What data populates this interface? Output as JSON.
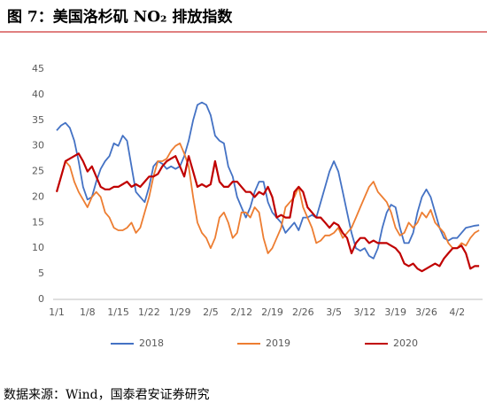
{
  "chart_data": {
    "type": "line",
    "title": "图 7：美国洛杉矶 NO₂ 排放指数",
    "source": "数据来源：Wind，国泰君安证券研究",
    "categories": [
      "1/1",
      null,
      null,
      null,
      null,
      null,
      null,
      "1/8",
      null,
      null,
      null,
      null,
      null,
      null,
      "1/15",
      null,
      null,
      null,
      null,
      null,
      null,
      "1/22",
      null,
      null,
      null,
      null,
      null,
      null,
      "1/29",
      null,
      null,
      null,
      null,
      null,
      null,
      "2/5",
      null,
      null,
      null,
      null,
      null,
      null,
      "2/12",
      null,
      null,
      null,
      null,
      null,
      null,
      "2/19",
      null,
      null,
      null,
      null,
      null,
      null,
      "2/26",
      null,
      null,
      null,
      null,
      null,
      null,
      "3/5",
      null,
      null,
      null,
      null,
      null,
      null,
      "3/12",
      null,
      null,
      null,
      null,
      null,
      null,
      "3/19",
      null,
      null,
      null,
      null,
      null,
      null,
      "3/26",
      null,
      null,
      null,
      null,
      null,
      null,
      "4/2",
      null,
      null,
      null,
      null,
      null
    ],
    "series": [
      {
        "name": "2018",
        "color": "#4472c4",
        "values": [
          33,
          34,
          34.5,
          33.5,
          31,
          27,
          22,
          19.5,
          20,
          23,
          25.5,
          27,
          28,
          30.5,
          30,
          32,
          31,
          26,
          21,
          20,
          19,
          22,
          26,
          27,
          26.5,
          25.5,
          26,
          25.5,
          26,
          28,
          31,
          35,
          38,
          38.5,
          38,
          36,
          32,
          31,
          30.5,
          26,
          24,
          20,
          18,
          16,
          18,
          21,
          23,
          23,
          19,
          17,
          16,
          15,
          13,
          14,
          15,
          13.5,
          16,
          16,
          16.5,
          16,
          19,
          22,
          25,
          27,
          25,
          21,
          17,
          13,
          10,
          9.5,
          10,
          8.5,
          8,
          10,
          14,
          17,
          18.5,
          18,
          14,
          11,
          11,
          13,
          17,
          20,
          21.5,
          20,
          17,
          14,
          12,
          11.5,
          12,
          12,
          13,
          14,
          14.2,
          14.4,
          14.5
        ]
      },
      {
        "name": "2019",
        "color": "#ed7d31",
        "values": [
          21,
          24,
          27,
          26,
          23,
          21,
          19.5,
          18,
          20,
          21,
          20,
          17,
          16,
          14,
          13.5,
          13.5,
          14,
          15,
          13,
          14,
          17,
          20,
          24,
          27,
          27,
          27.5,
          29,
          30,
          30.5,
          28.5,
          26,
          20,
          15,
          13,
          12,
          10,
          12,
          16,
          17,
          15,
          12,
          13,
          17,
          17,
          16,
          18,
          17,
          12,
          9,
          10,
          12,
          14,
          18,
          19,
          20,
          22,
          18,
          16,
          14,
          11,
          11.5,
          12.5,
          12.5,
          13,
          14,
          12,
          13,
          14,
          16,
          18,
          20,
          22,
          23,
          21,
          20,
          19,
          17,
          14,
          12.5,
          13,
          15,
          14,
          15,
          17,
          16,
          17.5,
          15,
          14,
          13,
          11,
          10,
          10,
          11,
          10.5,
          12,
          13,
          13.5
        ]
      },
      {
        "name": "2020",
        "color": "#c00000",
        "values": [
          21,
          24,
          27,
          27.5,
          28,
          28.5,
          27,
          25,
          26,
          24,
          22,
          21.5,
          21.5,
          22,
          22,
          22.5,
          23,
          22,
          22.5,
          22,
          23,
          24,
          24,
          24.5,
          26,
          27,
          27.5,
          28,
          26,
          24,
          28,
          25,
          22,
          22.5,
          22,
          22.5,
          27,
          23,
          22,
          22,
          23,
          23,
          22,
          21,
          21,
          20,
          21,
          20.5,
          22,
          20,
          16,
          16.5,
          16,
          16,
          21,
          22,
          21,
          18,
          17,
          16,
          16,
          15,
          14,
          15,
          14.5,
          13,
          12,
          9,
          11,
          12,
          12,
          11,
          11.5,
          11,
          11,
          11,
          10.5,
          10,
          9,
          7,
          6.5,
          7,
          6,
          5.5,
          6,
          6.5,
          7,
          6.5,
          8,
          9,
          10,
          10,
          10.5,
          9,
          6,
          6.5,
          6.5
        ]
      }
    ],
    "ylim": [
      0,
      45
    ],
    "yticks": [
      0,
      5,
      10,
      15,
      20,
      25,
      30,
      35,
      40,
      45
    ],
    "grid": false,
    "legend": "bottom"
  }
}
